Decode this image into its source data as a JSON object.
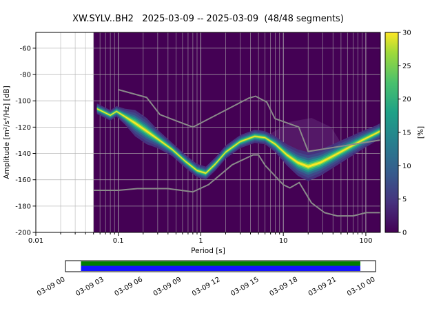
{
  "colors": {
    "histogram_bg": "#440154",
    "grid": "#b0b0b0",
    "noise_model": "#8a8a8a",
    "frame": "#000000",
    "haze": "rgba(150,118,182,0.20)"
  },
  "chart_data": {
    "type": "heatmap",
    "title": "XW.SYLV..BH2   2025-03-09 -- 2025-03-09  (48/48 segments)",
    "xlabel": "Period [s]",
    "ylabel": "Amplitude [m²/s⁴/Hz] [dB]",
    "colorbar_label": "[%]",
    "xlim": [
      0.01,
      150
    ],
    "ylim": [
      -200,
      -48
    ],
    "x_ticks": [
      0.01,
      0.1,
      1,
      10,
      100
    ],
    "x_tick_labels": [
      "0.01",
      "0.1",
      "1",
      "10",
      "100"
    ],
    "y_ticks": [
      -60,
      -80,
      -100,
      -120,
      -140,
      -160,
      -180,
      -200
    ],
    "colorbar_ticks": [
      0,
      5,
      10,
      15,
      20,
      25,
      30
    ],
    "colorbar_range": [
      0,
      30
    ],
    "grid": true,
    "legend_position": "none",
    "data_start_period": 0.05,
    "psd_ridge": [
      [
        0.055,
        -106,
        4
      ],
      [
        0.08,
        -111,
        4
      ],
      [
        0.095,
        -108,
        4
      ],
      [
        0.12,
        -112,
        6
      ],
      [
        0.16,
        -117,
        10
      ],
      [
        0.22,
        -123,
        10
      ],
      [
        0.3,
        -129,
        7
      ],
      [
        0.45,
        -137,
        5
      ],
      [
        0.65,
        -146,
        5
      ],
      [
        0.9,
        -153,
        5
      ],
      [
        1.15,
        -155,
        5
      ],
      [
        1.5,
        -148,
        5
      ],
      [
        2.0,
        -139,
        5
      ],
      [
        3.0,
        -131,
        5
      ],
      [
        4.5,
        -127,
        5
      ],
      [
        6.0,
        -128,
        5
      ],
      [
        8.0,
        -133,
        6
      ],
      [
        11,
        -141,
        8
      ],
      [
        15,
        -147,
        10
      ],
      [
        20,
        -150,
        11
      ],
      [
        28,
        -147,
        10
      ],
      [
        40,
        -142,
        9
      ],
      [
        60,
        -136,
        8
      ],
      [
        90,
        -130,
        7
      ],
      [
        130,
        -125,
        6
      ],
      [
        155,
        -123,
        6
      ]
    ],
    "band_layers": [
      {
        "f": 1.0,
        "color": "#46327e"
      },
      {
        "f": 0.78,
        "color": "#3f4889"
      },
      {
        "f": 0.58,
        "color": "#31688e"
      },
      {
        "f": 0.42,
        "color": "#21918c"
      },
      {
        "f": 0.28,
        "color": "#35b779"
      },
      {
        "f": 0.16,
        "color": "#90d743"
      },
      {
        "f": 0.07,
        "color": "#fde725"
      }
    ],
    "haze": [
      [
        7,
        -125
      ],
      [
        12,
        -116
      ],
      [
        22,
        -113
      ],
      [
        38,
        -120
      ],
      [
        50,
        -132
      ],
      [
        35,
        -148
      ],
      [
        18,
        -152
      ],
      [
        10,
        -140
      ]
    ],
    "noise_models": {
      "low": [
        [
          0.05,
          -168
        ],
        [
          0.1,
          -168
        ],
        [
          0.17,
          -166.7
        ],
        [
          0.4,
          -166.7
        ],
        [
          0.8,
          -169.2
        ],
        [
          1.24,
          -163.7
        ],
        [
          2.4,
          -148.6
        ],
        [
          4.3,
          -141.1
        ],
        [
          5,
          -141.1
        ],
        [
          6,
          -149
        ],
        [
          10,
          -163.8
        ],
        [
          12,
          -166.2
        ],
        [
          15.6,
          -162.1
        ],
        [
          21.9,
          -177.5
        ],
        [
          31.6,
          -185
        ],
        [
          45,
          -187.5
        ],
        [
          70,
          -187.5
        ],
        [
          101,
          -185
        ],
        [
          150,
          -185
        ]
      ],
      "high": [
        [
          0.1,
          -91.5
        ],
        [
          0.22,
          -97.4
        ],
        [
          0.32,
          -110.5
        ],
        [
          0.8,
          -120
        ],
        [
          3.8,
          -98
        ],
        [
          4.6,
          -96.5
        ],
        [
          6.3,
          -101
        ],
        [
          7.9,
          -113.5
        ],
        [
          15.4,
          -120
        ],
        [
          20,
          -138.5
        ],
        [
          150,
          -129.8
        ]
      ]
    },
    "viridis": [
      [
        0,
        "#440154"
      ],
      [
        0.15,
        "#46327e"
      ],
      [
        0.3,
        "#365c8d"
      ],
      [
        0.45,
        "#277f8e"
      ],
      [
        0.6,
        "#1fa187"
      ],
      [
        0.75,
        "#4ac16d"
      ],
      [
        0.9,
        "#a0da39"
      ],
      [
        1,
        "#fde725"
      ]
    ]
  },
  "timeline": {
    "labels": [
      "03-09 00",
      "03-09 03",
      "03-09 06",
      "03-09 09",
      "03-09 12",
      "03-09 15",
      "03-09 18",
      "03-09 21",
      "03-10 00"
    ],
    "inner_start_frac": 0.05,
    "inner_end_frac": 0.951,
    "colors": {
      "used": "#007d00",
      "data": "#1414ff",
      "background": "#ffffff"
    }
  }
}
